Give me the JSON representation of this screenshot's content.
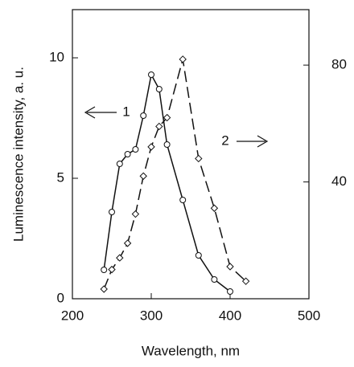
{
  "chart_data": {
    "type": "line",
    "x_label": "Wavelength, nm",
    "y_label": "Luminescence intensity, a. u.",
    "xlim": [
      200,
      500
    ],
    "xticks": [
      200,
      300,
      400,
      500
    ],
    "ylim": [
      0,
      12
    ],
    "yticks": [
      0,
      5,
      10
    ],
    "y2lim": [
      0,
      99
    ],
    "y2ticks": [
      40,
      80
    ],
    "series": [
      {
        "name": "1",
        "color": "#111111",
        "marker": "circle",
        "dashed": false,
        "x": [
          240,
          250,
          260,
          270,
          280,
          290,
          300,
          310,
          320,
          340,
          360,
          380,
          400
        ],
        "values": [
          1.2,
          3.6,
          5.6,
          6.0,
          6.2,
          7.6,
          9.3,
          8.7,
          6.4,
          4.1,
          1.8,
          0.8,
          0.3
        ]
      },
      {
        "name": "2",
        "color": "#111111",
        "marker": "diamond",
        "dashed": true,
        "axis": "y2",
        "x": [
          240,
          250,
          260,
          270,
          280,
          290,
          300,
          310,
          320,
          340,
          360,
          380,
          400,
          420
        ],
        "values": [
          3.3,
          10,
          14,
          19,
          29,
          42,
          52,
          59,
          62,
          82,
          48,
          31,
          11,
          6
        ]
      }
    ]
  }
}
